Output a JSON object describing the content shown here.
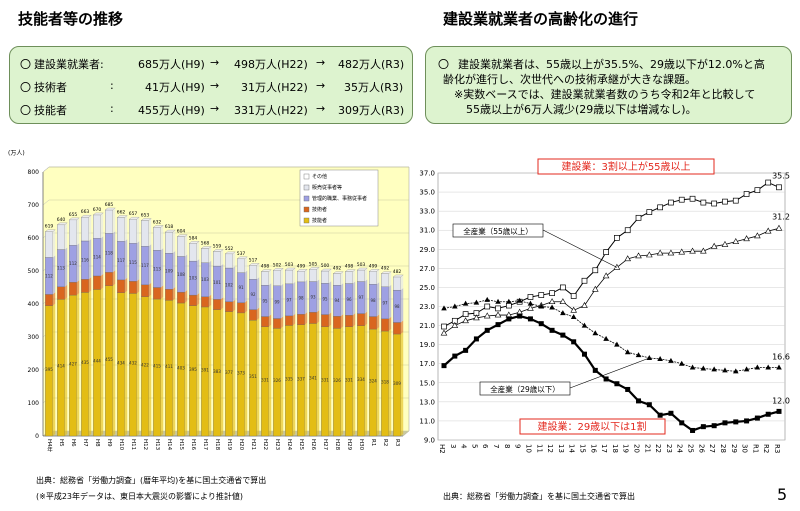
{
  "left_title": "技能者等の推移",
  "right_title": "建設業就業者の高齢化の進行",
  "left_box": {
    "rows": [
      {
        "bullet": "〇",
        "label": "建設業就業者:",
        "v1": "685万人(H9)",
        "a1": "→",
        "v2": "498万人(H22)",
        "a2": "→",
        "v3": "482万人(R3)"
      },
      {
        "bullet": "〇",
        "label": "技術者",
        "colon": ":",
        "v1": "41万人(H9)",
        "a1": "→",
        "v2": "31万人(H22)",
        "a2": "→",
        "v3": "35万人(R3)"
      },
      {
        "bullet": "〇",
        "label": "技能者",
        "colon": ":",
        "v1": "455万人(H9)",
        "a1": "→",
        "v2": "331万人(H22)",
        "a2": "→",
        "v3": "309万人(R3)"
      }
    ]
  },
  "right_box": {
    "bullet": "〇",
    "line1": "建設業就業者は、55歳以上が35.5%、29歳以下が12.0%と高",
    "line2": "齢化が進行し、次世代への技術承継が大きな課題。",
    "line3": "※実数ベースでは、建設業就業者数のうち令和2年と比較して",
    "line4": "55歳以上が6万人減少(29歳以下は増減なし)。"
  },
  "source_left_1": "出典：総務省「労働力調査」(暦年平均)を基に国土交通省で算出",
  "source_left_2": "(※平成23年データは、東日本大震災の影響により推計値)",
  "source_right": "出典：総務省「労働力調査」を基に国土交通省で算出",
  "page_number": "5",
  "colors": {
    "box_bg": "#ddf3cf",
    "bar_gijutsu": "#d9661f",
    "bar_ginou": "#e3bd15",
    "bar_kanri": "#9ea0e3",
    "bar_hanbai": "#e3e6ee",
    "plot_bg": "#ffffc0",
    "callout_red": "#e3281e"
  },
  "chart_data": [
    {
      "type": "bar",
      "title": "",
      "ylabel": "(万人)",
      "ylim": [
        0,
        800
      ],
      "yticks": [
        "0",
        "100",
        "200",
        "300",
        "400",
        "500",
        "600",
        "700",
        "800"
      ],
      "categories": [
        "H4年",
        "H5",
        "H6",
        "H7",
        "H8",
        "H9",
        "H10",
        "H11",
        "H12",
        "H13",
        "H14",
        "H15",
        "H16",
        "H17",
        "H18",
        "H19",
        "H20",
        "H21",
        "H22",
        "H23",
        "H24",
        "H25",
        "H26",
        "H27",
        "H28",
        "H29",
        "H30",
        "R1",
        "R2",
        "R3"
      ],
      "totals": [
        619,
        640,
        655,
        663,
        670,
        685,
        662,
        657,
        653,
        632,
        618,
        604,
        584,
        568,
        559,
        552,
        537,
        517,
        498,
        502,
        503,
        499,
        505,
        500,
        492,
        498,
        503,
        499,
        492,
        482
      ],
      "series": [
        {
          "name": "技能者",
          "values": [
            395,
            414,
            427,
            435,
            444,
            455,
            434,
            432,
            422,
            415,
            411,
            403,
            395,
            391,
            383,
            377,
            373,
            351,
            331,
            326,
            335,
            337,
            341,
            331,
            326,
            331,
            334,
            324,
            318,
            309
          ]
        },
        {
          "name": "技術者",
          "values": [
            34,
            38,
            39,
            40,
            41,
            41,
            39,
            37,
            36,
            35,
            34,
            33,
            32,
            31,
            31,
            30,
            31,
            32,
            31,
            30,
            29,
            32,
            34,
            37,
            37,
            35,
            37,
            38,
            37,
            35
          ]
        },
        {
          "name": "管理的職業、事務従事者",
          "values": [
            112,
            113,
            112,
            116,
            114,
            118,
            117,
            115,
            117,
            113,
            109,
            108,
            103,
            103,
            101,
            102,
            91,
            92,
            95,
            99,
            97,
            98,
            93,
            95,
            94,
            96,
            97,
            98,
            97,
            98
          ]
        },
        {
          "name": "販売従事者等",
          "values": [
            78,
            75,
            77,
            72,
            71,
            71,
            72,
            73,
            78,
            69,
            64,
            60,
            54,
            43,
            44,
            43,
            42,
            42,
            41,
            47,
            42,
            32,
            37,
            37,
            35,
            36,
            35,
            39,
            40,
            40
          ]
        },
        {
          "name": "その他",
          "values": [
            0,
            0,
            0,
            0,
            0,
            0,
            0,
            0,
            0,
            0,
            0,
            0,
            0,
            0,
            0,
            0,
            0,
            0,
            0,
            0,
            0,
            0,
            0,
            0,
            0,
            0,
            0,
            0,
            0,
            0
          ]
        }
      ],
      "legend": [
        "その他",
        "販売従事者等",
        "管理的職業、事務従事者",
        "技術者",
        "技能者"
      ],
      "legend_position": "top-right"
    },
    {
      "type": "line",
      "title": "",
      "ylim": [
        9.0,
        37.0
      ],
      "yticks": [
        "9.0",
        "11.0",
        "13.0",
        "15.0",
        "17.0",
        "19.0",
        "21.0",
        "23.0",
        "25.0",
        "27.0",
        "29.0",
        "31.0",
        "33.0",
        "35.0",
        "37.0"
      ],
      "x": [
        "H2",
        "3",
        "4",
        "5",
        "6",
        "7",
        "8",
        "9",
        "10",
        "11",
        "12",
        "13",
        "14",
        "15",
        "16",
        "17",
        "18",
        "19",
        "20",
        "21",
        "22",
        "23",
        "24",
        "25",
        "26",
        "27",
        "28",
        "29",
        "30",
        "R1",
        "R2",
        "R3"
      ],
      "series": [
        {
          "name": "建設業(55歳以上)",
          "values": [
            20.9,
            21.5,
            22.2,
            22.3,
            23.0,
            22.8,
            23.1,
            23.5,
            24.0,
            24.2,
            24.4,
            25.0,
            24.1,
            25.7,
            26.8,
            28.7,
            30.2,
            31.0,
            32.3,
            32.9,
            33.4,
            33.9,
            34.2,
            34.3,
            33.9,
            33.8,
            34.0,
            34.1,
            34.8,
            35.2,
            36.0,
            35.5
          ]
        },
        {
          "name": "全産業(55歳以上)",
          "values": [
            20.2,
            21.0,
            21.5,
            21.8,
            22.0,
            22.1,
            22.1,
            22.4,
            22.8,
            23.1,
            23.5,
            23.5,
            22.6,
            23.1,
            24.8,
            26.2,
            27.1,
            28.0,
            28.3,
            28.4,
            28.6,
            28.6,
            28.7,
            28.8,
            28.8,
            29.3,
            29.5,
            29.8,
            30.1,
            30.4,
            30.9,
            31.2
          ]
        },
        {
          "name": "全産業(29歳以下)",
          "values": [
            22.8,
            23.0,
            23.3,
            23.4,
            23.7,
            23.5,
            23.5,
            23.6,
            23.3,
            23.0,
            22.9,
            22.3,
            21.9,
            21.0,
            20.2,
            19.6,
            19.0,
            18.2,
            17.9,
            17.6,
            17.5,
            17.3,
            17.0,
            16.6,
            16.5,
            16.4,
            16.3,
            16.2,
            16.4,
            16.6,
            16.6,
            16.6
          ]
        },
        {
          "name": "建設業(29歳以下)",
          "values": [
            16.8,
            17.8,
            18.4,
            19.6,
            20.5,
            21.1,
            21.7,
            22.0,
            21.7,
            21.2,
            20.5,
            20.0,
            19.3,
            18.0,
            16.3,
            15.4,
            14.9,
            14.3,
            13.1,
            12.7,
            11.6,
            11.8,
            10.8,
            10.0,
            10.4,
            10.5,
            10.8,
            10.9,
            11.0,
            11.3,
            11.7,
            12.0
          ]
        }
      ],
      "labels": {
        "const55": "建設業：3割以上が55歳以上",
        "all55": "全産業（55歳以上）",
        "all29": "全産業（29歳以下）",
        "const29": "建設業：29歳以下は1割",
        "end_const55": "35.5",
        "end_all55": "31.2",
        "end_all29": "16.6",
        "end_const29": "12.0"
      }
    }
  ]
}
